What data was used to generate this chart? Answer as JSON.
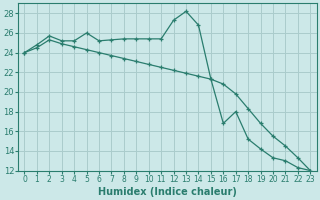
{
  "xlabel": "Humidex (Indice chaleur)",
  "background_color": "#cce8e8",
  "grid_color": "#aacccc",
  "line_color": "#2a7d6e",
  "xlim": [
    -0.5,
    23.5
  ],
  "ylim": [
    12,
    29
  ],
  "yticks": [
    12,
    14,
    16,
    18,
    20,
    22,
    24,
    26,
    28
  ],
  "xticks": [
    0,
    1,
    2,
    3,
    4,
    5,
    6,
    7,
    8,
    9,
    10,
    11,
    12,
    13,
    14,
    15,
    16,
    17,
    18,
    19,
    20,
    21,
    22,
    23
  ],
  "series1_x": [
    0,
    1,
    2,
    3,
    4,
    5,
    6,
    7,
    8,
    9,
    10,
    11,
    12,
    13,
    14,
    15,
    16,
    17,
    18,
    19,
    20,
    21,
    22,
    23
  ],
  "series1_y": [
    24.0,
    24.8,
    25.7,
    25.2,
    25.2,
    26.0,
    25.2,
    25.3,
    25.4,
    25.4,
    25.4,
    25.4,
    27.3,
    28.2,
    26.8,
    21.3,
    16.8,
    18.0,
    15.2,
    14.2,
    13.3,
    13.0,
    12.3,
    12.0
  ],
  "series2_x": [
    0,
    1,
    2,
    3,
    4,
    5,
    6,
    7,
    8,
    9,
    10,
    11,
    12,
    13,
    14,
    15,
    16,
    17,
    18,
    19,
    20,
    21,
    22,
    23
  ],
  "series2_y": [
    24.0,
    24.5,
    25.3,
    24.9,
    24.6,
    24.3,
    24.0,
    23.7,
    23.4,
    23.1,
    22.8,
    22.5,
    22.2,
    21.9,
    21.6,
    21.3,
    20.8,
    19.8,
    18.3,
    16.8,
    15.5,
    14.5,
    13.3,
    12.0
  ]
}
